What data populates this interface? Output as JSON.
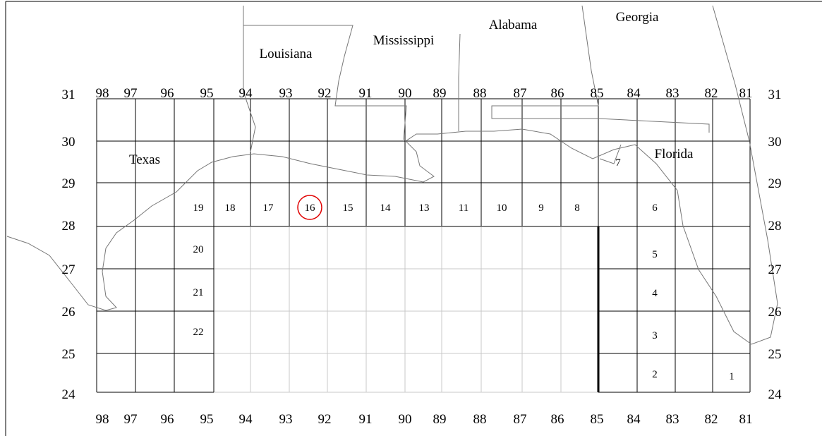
{
  "states": [
    "Texas",
    "Louisiana",
    "Mississippi",
    "Alabama",
    "Georgia",
    "Florida"
  ],
  "lon_top": [
    98,
    97,
    96,
    95,
    94,
    93,
    92,
    91,
    90,
    89,
    88,
    87,
    86,
    85,
    84,
    83,
    82,
    81
  ],
  "lon_bottom": [
    98,
    97,
    96,
    95,
    94,
    93,
    92,
    91,
    90,
    89,
    88,
    87,
    86,
    85,
    84,
    83,
    82,
    81
  ],
  "lat_left": [
    31,
    30,
    29,
    28,
    27,
    26,
    25,
    24
  ],
  "lat_right": [
    31,
    30,
    29,
    28,
    27,
    26,
    25,
    24
  ],
  "zones": [
    1,
    2,
    3,
    4,
    5,
    6,
    7,
    8,
    9,
    10,
    11,
    13,
    14,
    15,
    16,
    17,
    18,
    19,
    20,
    21,
    22
  ]
}
